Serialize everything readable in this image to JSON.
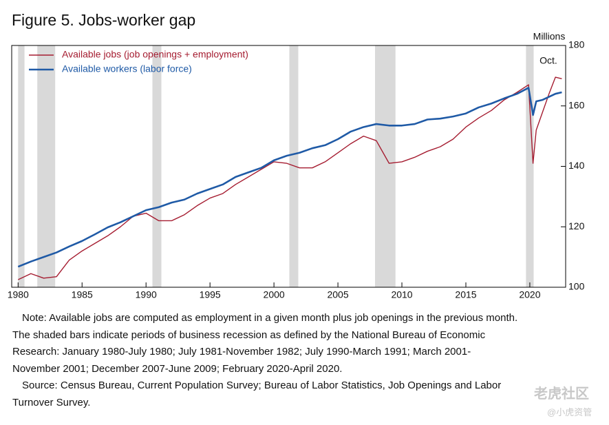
{
  "chart_data": {
    "type": "line",
    "title": "Figure 5. Jobs-worker gap",
    "y_unit_label": "Millions",
    "annotation": "Oct.",
    "x": [
      1980,
      1981,
      1982,
      1983,
      1984,
      1985,
      1986,
      1987,
      1988,
      1989,
      1990,
      1991,
      1992,
      1993,
      1994,
      1995,
      1996,
      1997,
      1998,
      1999,
      2000,
      2001,
      2002,
      2003,
      2004,
      2005,
      2006,
      2007,
      2008,
      2009,
      2010,
      2011,
      2012,
      2013,
      2014,
      2015,
      2016,
      2017,
      2018,
      2019,
      2019.9,
      2020.25,
      2020.5,
      2021,
      2021.5,
      2022,
      2022.5
    ],
    "series": [
      {
        "name": "Available jobs (job openings + employment)",
        "color": "#a51c30",
        "width": 1.4,
        "values": [
          102.5,
          104.5,
          103,
          103.5,
          109,
          112,
          114.5,
          117,
          120,
          123.5,
          124.5,
          122,
          122,
          124,
          127,
          129.5,
          131,
          134,
          136.5,
          139,
          141.5,
          141,
          139.5,
          139.5,
          141.5,
          144.5,
          147.5,
          150,
          148.5,
          141,
          141.5,
          143,
          145,
          146.5,
          149,
          153,
          156,
          158.5,
          162,
          164.5,
          167,
          141,
          152,
          158,
          164,
          169.5,
          169
        ]
      },
      {
        "name": "Available workers (labor force)",
        "color": "#1f5aa6",
        "width": 2.6,
        "values": [
          106.8,
          108.5,
          110,
          111.5,
          113.5,
          115.3,
          117.5,
          119.8,
          121.5,
          123.5,
          125.5,
          126.5,
          128,
          129,
          131,
          132.5,
          134,
          136.5,
          138,
          139.5,
          142,
          143.5,
          144.5,
          146,
          147,
          149,
          151.5,
          153,
          154,
          153.5,
          153.5,
          154,
          155.5,
          155.8,
          156.5,
          157.5,
          159.5,
          160.8,
          162.5,
          164,
          166,
          157,
          161.5,
          162,
          163,
          164,
          164.5
        ]
      }
    ],
    "recessions": [
      [
        1980.0,
        1980.5
      ],
      [
        1981.5,
        1982.9
      ],
      [
        1990.5,
        1991.2
      ],
      [
        2001.2,
        2001.9
      ],
      [
        2007.9,
        2009.5
      ],
      [
        2019.7,
        2020.3
      ]
    ],
    "xlim": [
      1979.5,
      2022.8
    ],
    "xticks": [
      1980,
      1985,
      1990,
      1995,
      2000,
      2005,
      2010,
      2015,
      2020
    ],
    "ylim": [
      100,
      180
    ],
    "yticks": [
      100,
      120,
      140,
      160,
      180
    ]
  },
  "notes": {
    "note_lines": [
      "Note: Available jobs are computed as employment in a given month plus job openings in the previous month.",
      "The shaded bars indicate periods of business recession as defined by the National Bureau of Economic",
      "Research: January 1980-July 1980; July 1981-November 1982; July 1990-March 1991; March 2001-",
      "November 2001; December 2007-June 2009; February 2020-April 2020."
    ],
    "source_lines": [
      "Source: Census Bureau, Current Population Survey; Bureau of Labor Statistics, Job Openings and Labor",
      "Turnover Survey."
    ]
  },
  "watermark": {
    "brand": "老虎社区",
    "handle": "@小虎资管"
  }
}
